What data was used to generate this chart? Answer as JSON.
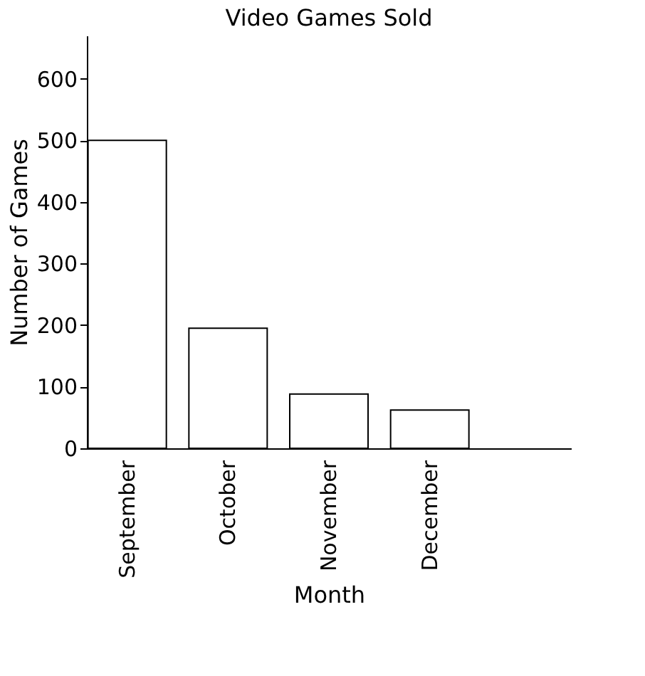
{
  "chart_data": {
    "type": "bar",
    "title": "Video Games Sold",
    "xlabel": "Month",
    "ylabel": "Number of Games",
    "categories": [
      "September",
      "October",
      "November",
      "December"
    ],
    "values": [
      500,
      195,
      88,
      62
    ],
    "color": "#ffffff",
    "ylim": [
      0,
      670
    ],
    "yticks": [
      0,
      100,
      200,
      300,
      400,
      500,
      600
    ],
    "grid": false
  }
}
